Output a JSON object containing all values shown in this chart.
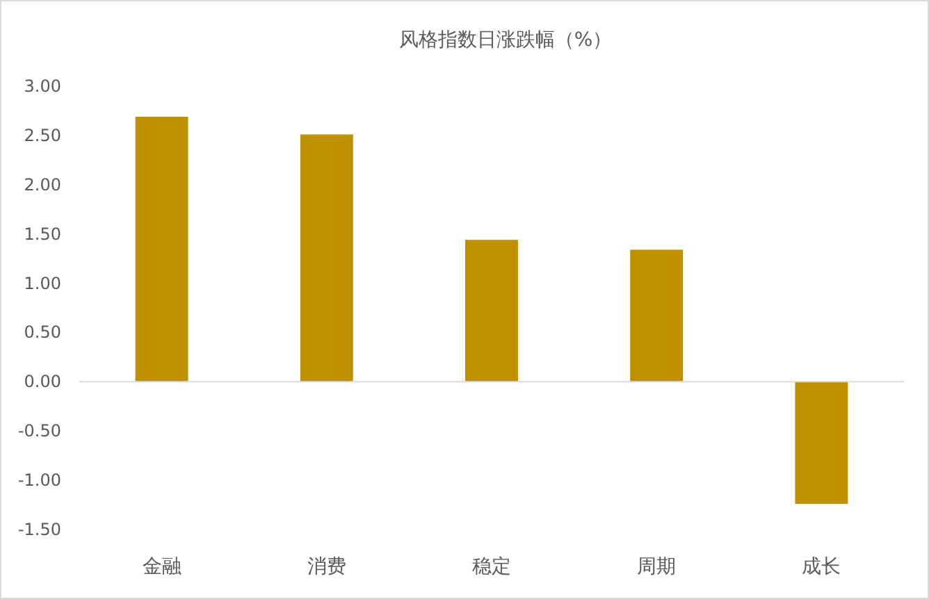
{
  "chart_data": {
    "type": "bar",
    "title": "风格指数日涨跌幅（%）",
    "categories": [
      "金融",
      "消费",
      "稳定",
      "周期",
      "成长"
    ],
    "values": [
      2.69,
      2.51,
      1.44,
      1.34,
      -1.24
    ],
    "color": "#bf9000",
    "ylim": [
      -1.5,
      3.0
    ],
    "yticks": [
      {
        "value": -1.5,
        "label": "-1.50"
      },
      {
        "value": -1.0,
        "label": "-1.00"
      },
      {
        "value": -0.5,
        "label": "-0.50"
      },
      {
        "value": 0,
        "label": "0.00"
      },
      {
        "value": 0.5,
        "label": "0.50"
      },
      {
        "value": 1.0,
        "label": "1.00"
      },
      {
        "value": 1.5,
        "label": "1.50"
      },
      {
        "value": 2.0,
        "label": "2.00"
      },
      {
        "value": 2.5,
        "label": "2.50"
      },
      {
        "value": 3.0,
        "label": "3.00"
      }
    ]
  }
}
